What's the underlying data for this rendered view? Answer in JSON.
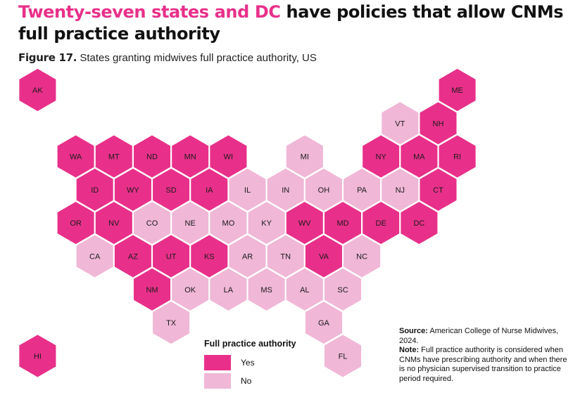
{
  "title": {
    "highlight": "Twenty-seven states and DC",
    "rest": " have policies that allow CNMs full practice authority"
  },
  "figure": {
    "label": "Figure 17.",
    "caption": " States granting midwives full practice authority, US"
  },
  "colors": {
    "yes": "#e8308a",
    "no": "#f0b7d7"
  },
  "map_data": {
    "hexes": [
      {
        "code": "AK",
        "status": "yes",
        "col": 1,
        "row": 0
      },
      {
        "code": "ME",
        "status": "yes",
        "col": 12,
        "row": 0
      },
      {
        "code": "VT",
        "status": "no",
        "col": 10,
        "row": 1
      },
      {
        "code": "NH",
        "status": "yes",
        "col": 11,
        "row": 1
      },
      {
        "code": "WA",
        "status": "yes",
        "col": 2,
        "row": 2
      },
      {
        "code": "MT",
        "status": "yes",
        "col": 3,
        "row": 2
      },
      {
        "code": "ND",
        "status": "yes",
        "col": 4,
        "row": 2
      },
      {
        "code": "MN",
        "status": "yes",
        "col": 5,
        "row": 2
      },
      {
        "code": "WI",
        "status": "yes",
        "col": 6,
        "row": 2
      },
      {
        "code": "MI",
        "status": "no",
        "col": 8,
        "row": 2
      },
      {
        "code": "NY",
        "status": "yes",
        "col": 10,
        "row": 2
      },
      {
        "code": "MA",
        "status": "yes",
        "col": 11,
        "row": 2
      },
      {
        "code": "RI",
        "status": "yes",
        "col": 12,
        "row": 2
      },
      {
        "code": "ID",
        "status": "yes",
        "col": 2,
        "row": 3
      },
      {
        "code": "WY",
        "status": "yes",
        "col": 3,
        "row": 3
      },
      {
        "code": "SD",
        "status": "yes",
        "col": 4,
        "row": 3
      },
      {
        "code": "IA",
        "status": "yes",
        "col": 5,
        "row": 3
      },
      {
        "code": "IL",
        "status": "no",
        "col": 6,
        "row": 3
      },
      {
        "code": "IN",
        "status": "no",
        "col": 7,
        "row": 3
      },
      {
        "code": "OH",
        "status": "no",
        "col": 8,
        "row": 3
      },
      {
        "code": "PA",
        "status": "no",
        "col": 9,
        "row": 3
      },
      {
        "code": "NJ",
        "status": "no",
        "col": 10,
        "row": 3
      },
      {
        "code": "CT",
        "status": "yes",
        "col": 11,
        "row": 3
      },
      {
        "code": "OR",
        "status": "yes",
        "col": 2,
        "row": 4
      },
      {
        "code": "NV",
        "status": "yes",
        "col": 3,
        "row": 4
      },
      {
        "code": "CO",
        "status": "no",
        "col": 4,
        "row": 4
      },
      {
        "code": "NE",
        "status": "no",
        "col": 5,
        "row": 4
      },
      {
        "code": "MO",
        "status": "no",
        "col": 6,
        "row": 4
      },
      {
        "code": "KY",
        "status": "no",
        "col": 7,
        "row": 4
      },
      {
        "code": "WV",
        "status": "yes",
        "col": 8,
        "row": 4
      },
      {
        "code": "MD",
        "status": "yes",
        "col": 9,
        "row": 4
      },
      {
        "code": "DE",
        "status": "yes",
        "col": 10,
        "row": 4
      },
      {
        "code": "DC",
        "status": "yes",
        "col": 11,
        "row": 4
      },
      {
        "code": "CA",
        "status": "no",
        "col": 2,
        "row": 5
      },
      {
        "code": "AZ",
        "status": "yes",
        "col": 3,
        "row": 5
      },
      {
        "code": "UT",
        "status": "yes",
        "col": 4,
        "row": 5
      },
      {
        "code": "KS",
        "status": "yes",
        "col": 5,
        "row": 5
      },
      {
        "code": "AR",
        "status": "no",
        "col": 6,
        "row": 5
      },
      {
        "code": "TN",
        "status": "no",
        "col": 7,
        "row": 5
      },
      {
        "code": "VA",
        "status": "yes",
        "col": 8,
        "row": 5
      },
      {
        "code": "NC",
        "status": "no",
        "col": 9,
        "row": 5
      },
      {
        "code": "NM",
        "status": "yes",
        "col": 4,
        "row": 6
      },
      {
        "code": "OK",
        "status": "no",
        "col": 5,
        "row": 6
      },
      {
        "code": "LA",
        "status": "no",
        "col": 6,
        "row": 6
      },
      {
        "code": "MS",
        "status": "no",
        "col": 7,
        "row": 6
      },
      {
        "code": "AL",
        "status": "no",
        "col": 8,
        "row": 6
      },
      {
        "code": "SC",
        "status": "no",
        "col": 9,
        "row": 6
      },
      {
        "code": "TX",
        "status": "no",
        "col": 4,
        "row": 7
      },
      {
        "code": "GA",
        "status": "no",
        "col": 8,
        "row": 7
      },
      {
        "code": "HI",
        "status": "yes",
        "col": 1,
        "row": 8
      },
      {
        "code": "FL",
        "status": "no",
        "col": 9,
        "row": 8
      }
    ]
  },
  "legend": {
    "title": "Full practice authority",
    "items": [
      {
        "label": "Yes",
        "status": "yes"
      },
      {
        "label": "No",
        "status": "no"
      }
    ]
  },
  "source": {
    "label": "Source:",
    "text": " American College of Nurse Midwives, 2024.",
    "note_label": "Note:",
    "note_text": " Full practice authority is considered when CNMs have prescribing authority and when there is no physician supervised transition to practice period required."
  }
}
